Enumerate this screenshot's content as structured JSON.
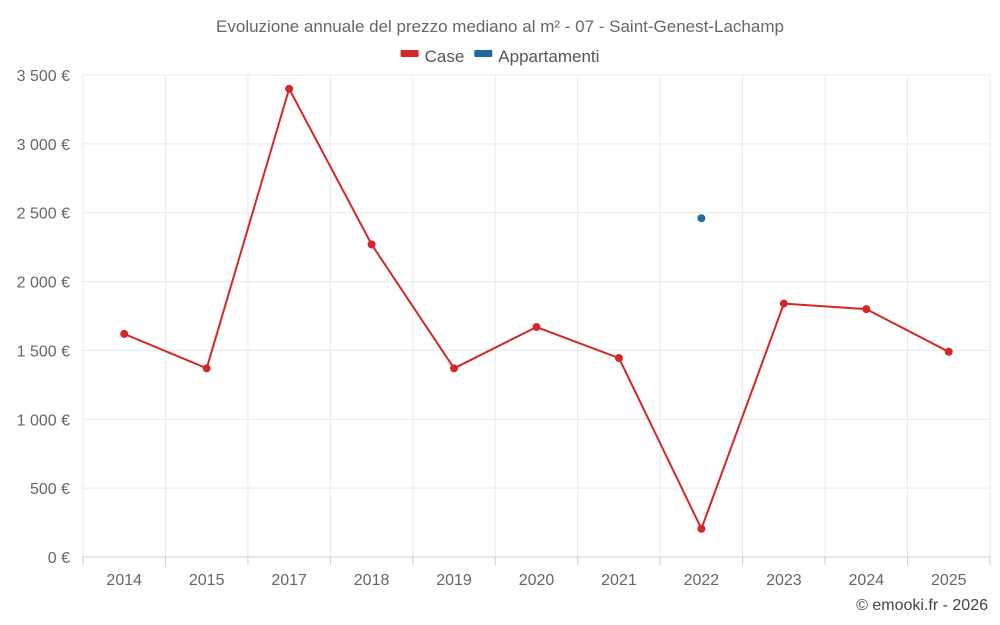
{
  "chart_data": {
    "type": "line",
    "title": "Evoluzione annuale del prezzo mediano al m² - 07 - Saint-Genest-Lachamp",
    "categories": [
      "2014",
      "2015",
      "2017",
      "2018",
      "2019",
      "2020",
      "2021",
      "2022",
      "2023",
      "2024",
      "2025"
    ],
    "ylim": [
      0,
      3500
    ],
    "yticks": [
      0,
      500,
      1000,
      1500,
      2000,
      2500,
      3000,
      3500
    ],
    "ytick_labels": [
      "0 €",
      "500 €",
      "1 000 €",
      "1 500 €",
      "2 000 €",
      "2 500 €",
      "3 000 €",
      "3 500 €"
    ],
    "xlabel": "",
    "ylabel": "",
    "grid": true,
    "legend_position": "top-center",
    "series": [
      {
        "name": "Case",
        "color": "#d62728",
        "values": [
          1620,
          1370,
          3400,
          2270,
          1370,
          1670,
          1445,
          205,
          1840,
          1800,
          1490
        ]
      },
      {
        "name": "Appartamenti",
        "color": "#1f6aa5",
        "values": [
          null,
          null,
          null,
          null,
          null,
          null,
          null,
          2460,
          null,
          null,
          null
        ]
      }
    ]
  },
  "credit": "© emooki.fr - 2026"
}
